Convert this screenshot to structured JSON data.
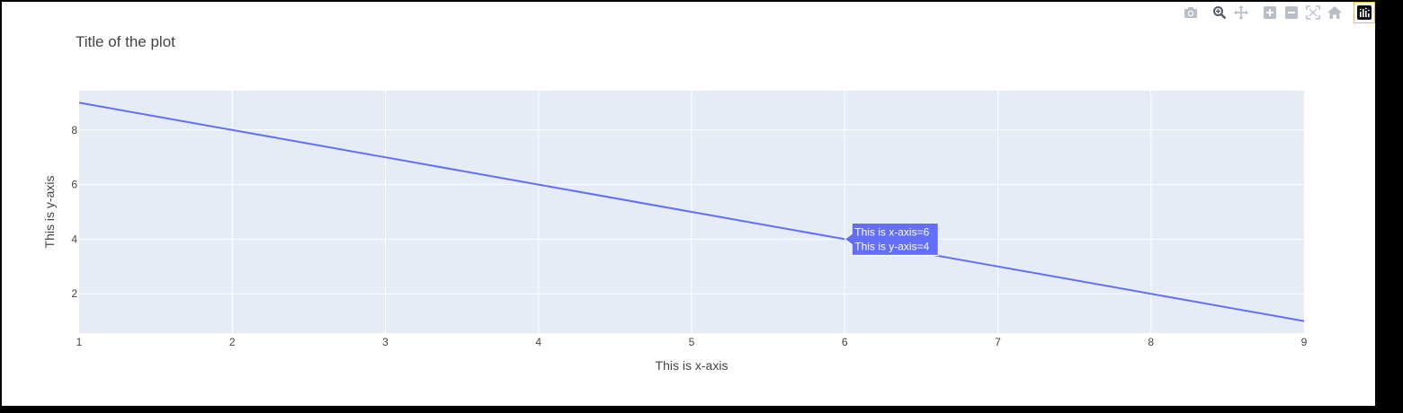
{
  "modebar": {
    "buttons": [
      {
        "name": "camera-icon",
        "label": "Download plot as a png"
      },
      {
        "name": "zoom-icon",
        "label": "Zoom"
      },
      {
        "name": "pan-icon",
        "label": "Pan"
      },
      {
        "name": "zoom-in-icon",
        "label": "Zoom in"
      },
      {
        "name": "zoom-out-icon",
        "label": "Zoom out"
      },
      {
        "name": "autoscale-icon",
        "label": "Autoscale"
      },
      {
        "name": "home-icon",
        "label": "Reset axes"
      },
      {
        "name": "plotly-logo-icon",
        "label": "Produced with Plotly"
      }
    ]
  },
  "chart_data": {
    "type": "line",
    "title": "Title of the plot",
    "xlabel": "This is x-axis",
    "ylabel": "This is y-axis",
    "x": [
      1,
      2,
      3,
      4,
      5,
      6,
      7,
      8,
      9
    ],
    "series": [
      {
        "values": [
          9,
          8,
          7,
          6,
          5,
          4,
          3,
          2,
          1
        ],
        "color": "#636efa"
      }
    ],
    "xlim": [
      1,
      9
    ],
    "ylim": [
      0.56,
      9.44
    ],
    "xticks": [
      1,
      2,
      3,
      4,
      5,
      6,
      7,
      8,
      9
    ],
    "yticks": [
      2,
      4,
      6,
      8
    ],
    "grid": true,
    "plot_bg": "#e5ecf6",
    "hover": {
      "x": 6,
      "y": 4,
      "lines": [
        "This is x-axis=6",
        "This is y-axis=4"
      ]
    }
  }
}
